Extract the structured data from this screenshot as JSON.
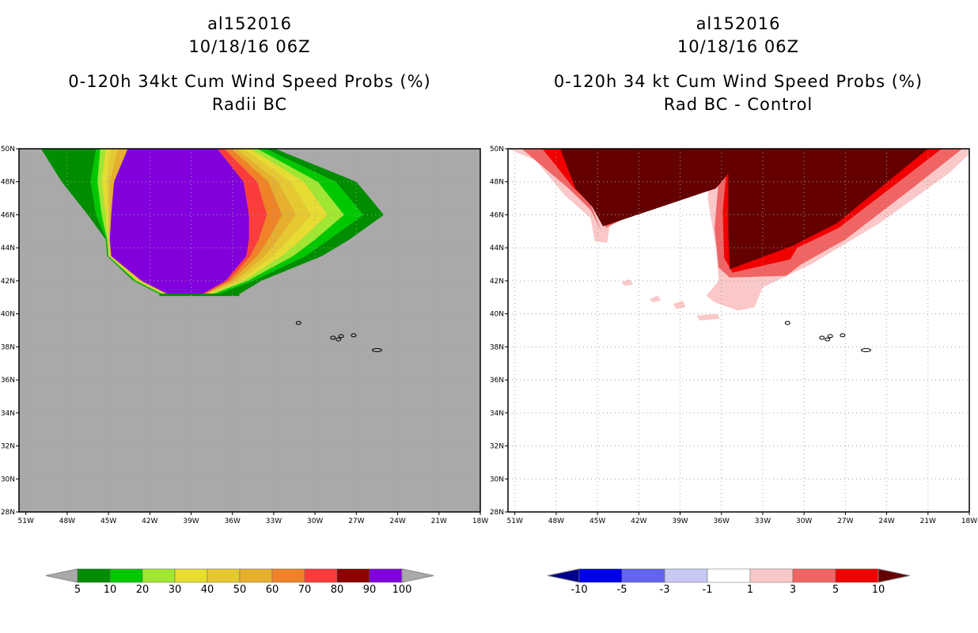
{
  "left_panel": {
    "title_lines": [
      "al152016",
      "10/18/16 06Z",
      "0-120h 34kt Cum Wind Speed Probs (%)",
      "Radii BC"
    ]
  },
  "right_panel": {
    "title_lines": [
      "al152016",
      "10/18/16 06Z",
      "0-120h 34 kt Cum Wind Speed Probs (%)",
      "Rad BC - Control"
    ]
  },
  "chart_data": [
    {
      "type": "heatmap",
      "title": "0-120h 34kt Cum Wind Speed Probs (%) Radii BC",
      "xlim": [
        -51.5,
        -18
      ],
      "ylim": [
        28,
        50
      ],
      "x_ticks": [
        -51,
        -48,
        -45,
        -42,
        -39,
        -36,
        -33,
        -30,
        -27,
        -24,
        -21,
        -18
      ],
      "x_tick_labels": [
        "51W",
        "48W",
        "45W",
        "42W",
        "39W",
        "36W",
        "33W",
        "30W",
        "27W",
        "24W",
        "21W",
        "18W"
      ],
      "y_ticks": [
        28,
        30,
        32,
        34,
        36,
        38,
        40,
        42,
        44,
        46,
        48,
        50
      ],
      "y_tick_labels": [
        "28N",
        "30N",
        "32N",
        "34N",
        "36N",
        "38N",
        "40N",
        "42N",
        "44N",
        "46N",
        "48N",
        "50N"
      ],
      "grid": true,
      "background_color": "#a9a9a9",
      "colorbar": {
        "levels": [
          "5",
          "10",
          "20",
          "30",
          "40",
          "50",
          "60",
          "70",
          "80",
          "90",
          "100"
        ],
        "colors": [
          "#a9a9a9",
          "#008e00",
          "#00c800",
          "#a0e632",
          "#e6dc32",
          "#e6c832",
          "#e6af2d",
          "#f08228",
          "#fa3c3c",
          "#8c0000",
          "#8200dc",
          "#a9a9a9"
        ]
      },
      "bands_lon": [
        {
          "y": 50,
          "bounds": [
            -49.9,
            -45.9,
            -45.6,
            -45.2,
            -44.8,
            -44.3,
            -43.6,
            -37.1,
            -36.6,
            -36.1,
            -35.7,
            -35.2,
            -34.7,
            -34.2,
            -33.6,
            -32.9
          ]
        },
        {
          "y": 48,
          "bounds": [
            -48.4,
            -46.3,
            -45.8,
            -45.5,
            -45.1,
            -44.9,
            -44.6,
            -35.2,
            -34.2,
            -33.4,
            -32.7,
            -31.8,
            -30.8,
            -29.8,
            -28.5,
            -27
          ]
        },
        {
          "y": 46,
          "bounds": [
            -46.5,
            -45.9,
            -45.5,
            -45.2,
            -45,
            -44.9,
            -44.8,
            -34.8,
            -33.5,
            -32.4,
            -31.4,
            -30.3,
            -29.1,
            -27.9,
            -26.5,
            -25
          ]
        },
        {
          "y": 44.5,
          "bounds": [
            -45.2,
            -45.15,
            -45.1,
            -45.05,
            -45,
            -44.95,
            -44.9,
            -34.8,
            -34.1,
            -33.4,
            -32.7,
            -31.9,
            -31,
            -30,
            -29,
            -27.5
          ]
        },
        {
          "y": 43.5,
          "bounds": [
            -45.1,
            -45.05,
            -45,
            -44.95,
            -44.9,
            -44.85,
            -44.8,
            -35,
            -34.7,
            -34.2,
            -33.7,
            -33.1,
            -32.4,
            -31.6,
            -30.7,
            -29.5
          ]
        },
        {
          "y": 42,
          "bounds": [
            -43.2,
            -43.1,
            -43,
            -42.9,
            -42.8,
            -42.7,
            -42.6,
            -36.5,
            -36.3,
            -36.1,
            -35.8,
            -35.5,
            -35.2,
            -34.9,
            -34.5,
            -33.9
          ]
        },
        {
          "y": 41.2,
          "bounds": [
            -41.3,
            -41.2,
            -41.1,
            -41,
            -40.9,
            -40.8,
            -40.7,
            -38.2,
            -38.1,
            -38,
            -37.9,
            -37.8,
            -37.6,
            -37.4,
            -37,
            -35.5
          ]
        }
      ],
      "islands": [
        {
          "name": "Flores",
          "lon": -31.2,
          "lat": 39.45
        },
        {
          "name": "Faial",
          "lon": -28.7,
          "lat": 38.55
        },
        {
          "name": "Sao Jorge",
          "lon": -28.1,
          "lat": 38.65
        },
        {
          "name": "Pico",
          "lon": -28.3,
          "lat": 38.45
        },
        {
          "name": "Terceira",
          "lon": -27.2,
          "lat": 38.7
        },
        {
          "name": "Sao Miguel",
          "lon": -25.5,
          "lat": 37.8
        }
      ]
    },
    {
      "type": "heatmap",
      "title": "0-120h 34 kt Cum Wind Speed Probs (%) Rad BC - Control",
      "xlim": [
        -51.5,
        -18
      ],
      "ylim": [
        28,
        50
      ],
      "x_ticks": [
        -51,
        -48,
        -45,
        -42,
        -39,
        -36,
        -33,
        -30,
        -27,
        -24,
        -21,
        -18
      ],
      "x_tick_labels": [
        "51W",
        "48W",
        "45W",
        "42W",
        "39W",
        "36W",
        "33W",
        "30W",
        "27W",
        "24W",
        "21W",
        "18W"
      ],
      "y_ticks": [
        28,
        30,
        32,
        34,
        36,
        38,
        40,
        42,
        44,
        46,
        48,
        50
      ],
      "y_tick_labels": [
        "28N",
        "30N",
        "32N",
        "34N",
        "36N",
        "38N",
        "40N",
        "42N",
        "44N",
        "46N",
        "48N",
        "50N"
      ],
      "grid": true,
      "background_color": "#ffffff",
      "colorbar": {
        "levels": [
          "-10",
          "-5",
          "-3",
          "-1",
          "1",
          "3",
          "5",
          "10"
        ],
        "colors": [
          "#00008c",
          "#0000e6",
          "#6464f0",
          "#c8c8f5",
          "#ffffff",
          "#fac8c8",
          "#f06464",
          "#f00000",
          "#640000"
        ]
      },
      "shapes": [
        {
          "level": "1 to 3",
          "color": "#fac8c8",
          "points": [
            [
              -51.5,
              50
            ],
            [
              -33.3,
              50
            ],
            [
              -36.8,
              47.8
            ],
            [
              -43.9,
              46.5
            ],
            [
              -44.3,
              44.3
            ],
            [
              -45.2,
              44.4
            ],
            [
              -45.5,
              45.8
            ],
            [
              -47.4,
              47.2
            ],
            [
              -49.5,
              49.3
            ]
          ]
        },
        {
          "level": "1 to 3",
          "color": "#fac8c8",
          "points": [
            [
              -36.7,
              50
            ],
            [
              -17.6,
              50
            ],
            [
              -19.5,
              48.5
            ],
            [
              -24.5,
              45.5
            ],
            [
              -29.5,
              43
            ],
            [
              -33,
              41.6
            ],
            [
              -33.6,
              40.4
            ],
            [
              -34.8,
              40.2
            ],
            [
              -36.5,
              40.7
            ],
            [
              -37.1,
              41.1
            ],
            [
              -36.2,
              42
            ],
            [
              -36.4,
              44
            ],
            [
              -37,
              47
            ]
          ]
        },
        {
          "level": "3 to 5",
          "color": "#f06464",
          "points": [
            [
              -50.5,
              50
            ],
            [
              -47.2,
              50
            ],
            [
              -45.6,
              46.8
            ],
            [
              -44.7,
              45
            ],
            [
              -45.5,
              46.3
            ],
            [
              -47.1,
              47.6
            ]
          ]
        },
        {
          "level": "3 to 5",
          "color": "#f06464",
          "points": [
            [
              -33.5,
              50
            ],
            [
              -36.9,
              47.8
            ],
            [
              -44.5,
              46.6
            ],
            [
              -44.4,
              45.2
            ]
          ]
        },
        {
          "level": "3 to 5",
          "color": "#f06464",
          "points": [
            [
              -36,
              50
            ],
            [
              -18.5,
              50
            ],
            [
              -22,
              47.7
            ],
            [
              -27,
              44.5
            ],
            [
              -30.2,
              43
            ],
            [
              -31.3,
              42.3
            ],
            [
              -35.4,
              42.2
            ],
            [
              -36.2,
              42.8
            ],
            [
              -36.5,
              45.2
            ]
          ]
        },
        {
          "level": "5 to 10",
          "color": "#f00000",
          "points": [
            [
              -49,
              50
            ],
            [
              -33.6,
              50
            ],
            [
              -36.6,
              47.9
            ],
            [
              -44.4,
              45.4
            ],
            [
              -45.3,
              46.5
            ],
            [
              -46.7,
              47.6
            ]
          ]
        },
        {
          "level": "5 to 10",
          "color": "#f00000",
          "points": [
            [
              -35.5,
              50
            ],
            [
              -20,
              50
            ],
            [
              -27.5,
              45.2
            ],
            [
              -30.5,
              44
            ],
            [
              -31,
              43.3
            ],
            [
              -35.2,
              42.5
            ],
            [
              -35.8,
              43.4
            ],
            [
              -35.9,
              46.2
            ]
          ]
        },
        {
          "level": ">10",
          "color": "#640000",
          "points": [
            [
              -47.7,
              50
            ],
            [
              -34,
              50
            ],
            [
              -36.4,
              47.6
            ],
            [
              -44.6,
              45.3
            ],
            [
              -45.4,
              46.5
            ],
            [
              -46.6,
              47.6
            ]
          ]
        },
        {
          "level": ">10",
          "color": "#640000",
          "points": [
            [
              -35.5,
              50
            ],
            [
              -21,
              50
            ],
            [
              -27.6,
              45.5
            ],
            [
              -30.9,
              44.1
            ],
            [
              -35.4,
              42.7
            ],
            [
              -35.5,
              45
            ]
          ]
        },
        {
          "level": "1 to 3",
          "color": "#fac8c8",
          "points": [
            [
              -43.3,
              41.9
            ],
            [
              -42.7,
              42.1
            ],
            [
              -42.4,
              41.8
            ],
            [
              -43,
              41.7
            ]
          ]
        },
        {
          "level": "1 to 3",
          "color": "#fac8c8",
          "points": [
            [
              -41.2,
              40.9
            ],
            [
              -40.6,
              41.1
            ],
            [
              -40.4,
              40.8
            ],
            [
              -41,
              40.7
            ]
          ]
        },
        {
          "level": "1 to 3",
          "color": "#fac8c8",
          "points": [
            [
              -39.5,
              40.6
            ],
            [
              -38.8,
              40.8
            ],
            [
              -38.6,
              40.4
            ],
            [
              -39.3,
              40.3
            ]
          ]
        },
        {
          "level": "1 to 3",
          "color": "#fac8c8",
          "points": [
            [
              -37.8,
              39.9
            ],
            [
              -36.3,
              40
            ],
            [
              -36.1,
              39.7
            ],
            [
              -37.6,
              39.6
            ]
          ]
        }
      ],
      "islands": [
        {
          "name": "Flores",
          "lon": -31.2,
          "lat": 39.45
        },
        {
          "name": "Faial",
          "lon": -28.7,
          "lat": 38.55
        },
        {
          "name": "Sao Jorge",
          "lon": -28.1,
          "lat": 38.65
        },
        {
          "name": "Pico",
          "lon": -28.3,
          "lat": 38.45
        },
        {
          "name": "Terceira",
          "lon": -27.2,
          "lat": 38.7
        },
        {
          "name": "Sao Miguel",
          "lon": -25.5,
          "lat": 37.8
        }
      ]
    }
  ]
}
